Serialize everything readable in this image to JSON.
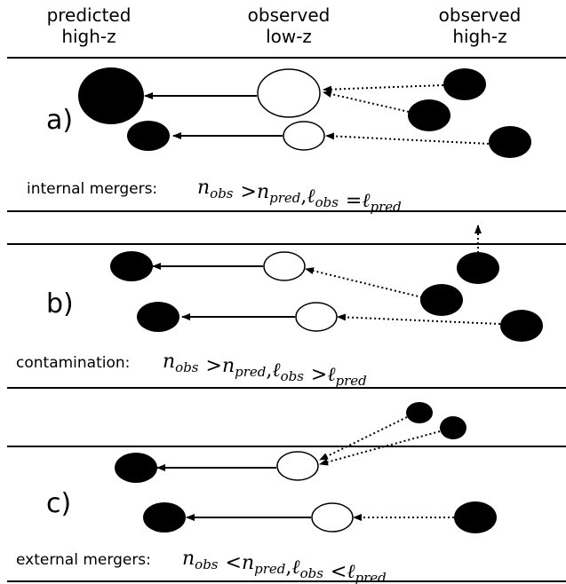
{
  "header": {
    "columns": [
      [
        "predicted",
        "high-z"
      ],
      [
        "observed",
        "low-z"
      ],
      [
        "observed",
        "high-z"
      ]
    ]
  },
  "panels": [
    {
      "label": "a)",
      "caption": "internal mergers:",
      "math": [
        {
          "base": "n",
          "sub": "obs"
        },
        {
          "op": ">"
        },
        {
          "base": "n",
          "sub": "pred"
        },
        {
          "op": ","
        },
        {
          "base": "ℓ",
          "sub": "obs"
        },
        {
          "op": "="
        },
        {
          "base": "ℓ",
          "sub": "pred"
        }
      ]
    },
    {
      "label": "b)",
      "caption": "contamination:",
      "math": [
        {
          "base": "n",
          "sub": "obs"
        },
        {
          "op": ">"
        },
        {
          "base": "n",
          "sub": "pred"
        },
        {
          "op": ","
        },
        {
          "base": "ℓ",
          "sub": "obs"
        },
        {
          "op": ">"
        },
        {
          "base": "ℓ",
          "sub": "pred"
        }
      ]
    },
    {
      "label": "c)",
      "caption": "external mergers:",
      "math": [
        {
          "base": "n",
          "sub": "obs"
        },
        {
          "op": "<"
        },
        {
          "base": "n",
          "sub": "pred"
        },
        {
          "op": ","
        },
        {
          "base": "ℓ",
          "sub": "obs"
        },
        {
          "op": "<"
        },
        {
          "base": "ℓ",
          "sub": "pred"
        }
      ]
    }
  ]
}
